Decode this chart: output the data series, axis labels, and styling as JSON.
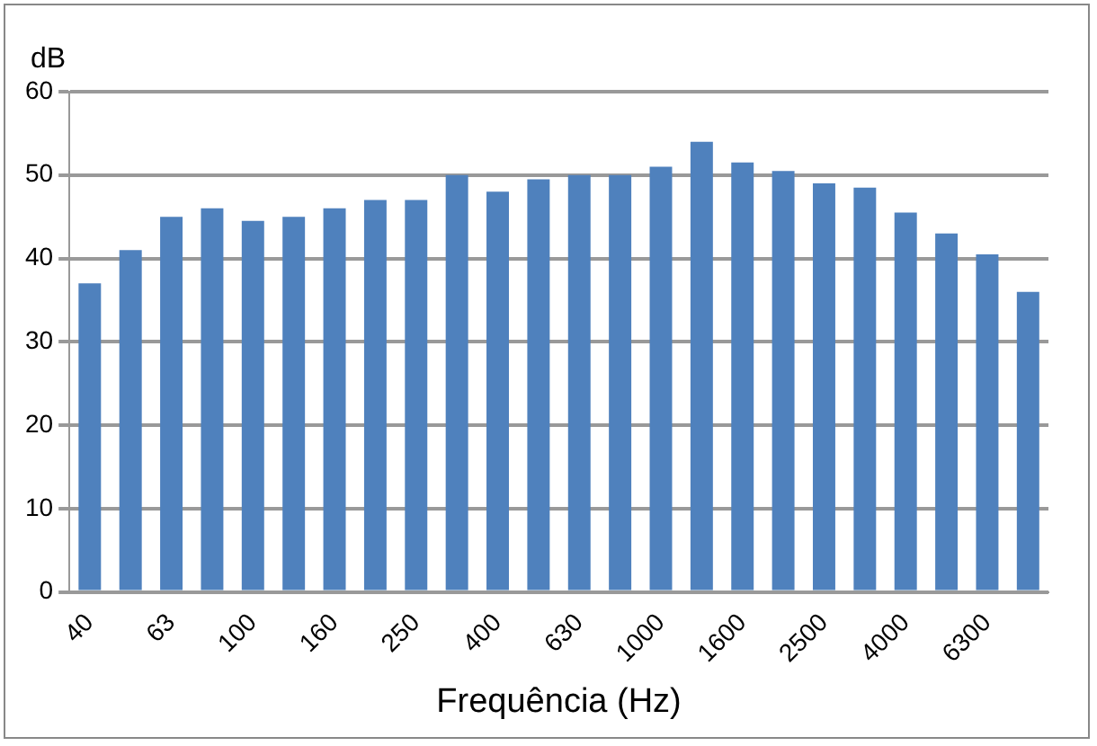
{
  "chart_data": {
    "type": "bar",
    "xlabel": "Frequência (Hz)",
    "ylabel": "dB",
    "categories": [
      "40",
      null,
      "63",
      null,
      "100",
      null,
      "160",
      null,
      "250",
      null,
      "400",
      null,
      "630",
      null,
      "1000",
      null,
      "1600",
      null,
      "2500",
      null,
      "4000",
      null,
      "6300",
      null
    ],
    "values": [
      37,
      41,
      45,
      46,
      44.5,
      45,
      46,
      47,
      47,
      50,
      48,
      49.5,
      50,
      50,
      51,
      54,
      51.5,
      50.5,
      49,
      48.5,
      45.5,
      43,
      40.5,
      36
    ],
    "color": "#4f81bd",
    "ylim": [
      0,
      60
    ],
    "yticks": [
      0,
      10,
      20,
      30,
      40,
      50,
      60
    ],
    "grid": "y",
    "legend": false
  }
}
